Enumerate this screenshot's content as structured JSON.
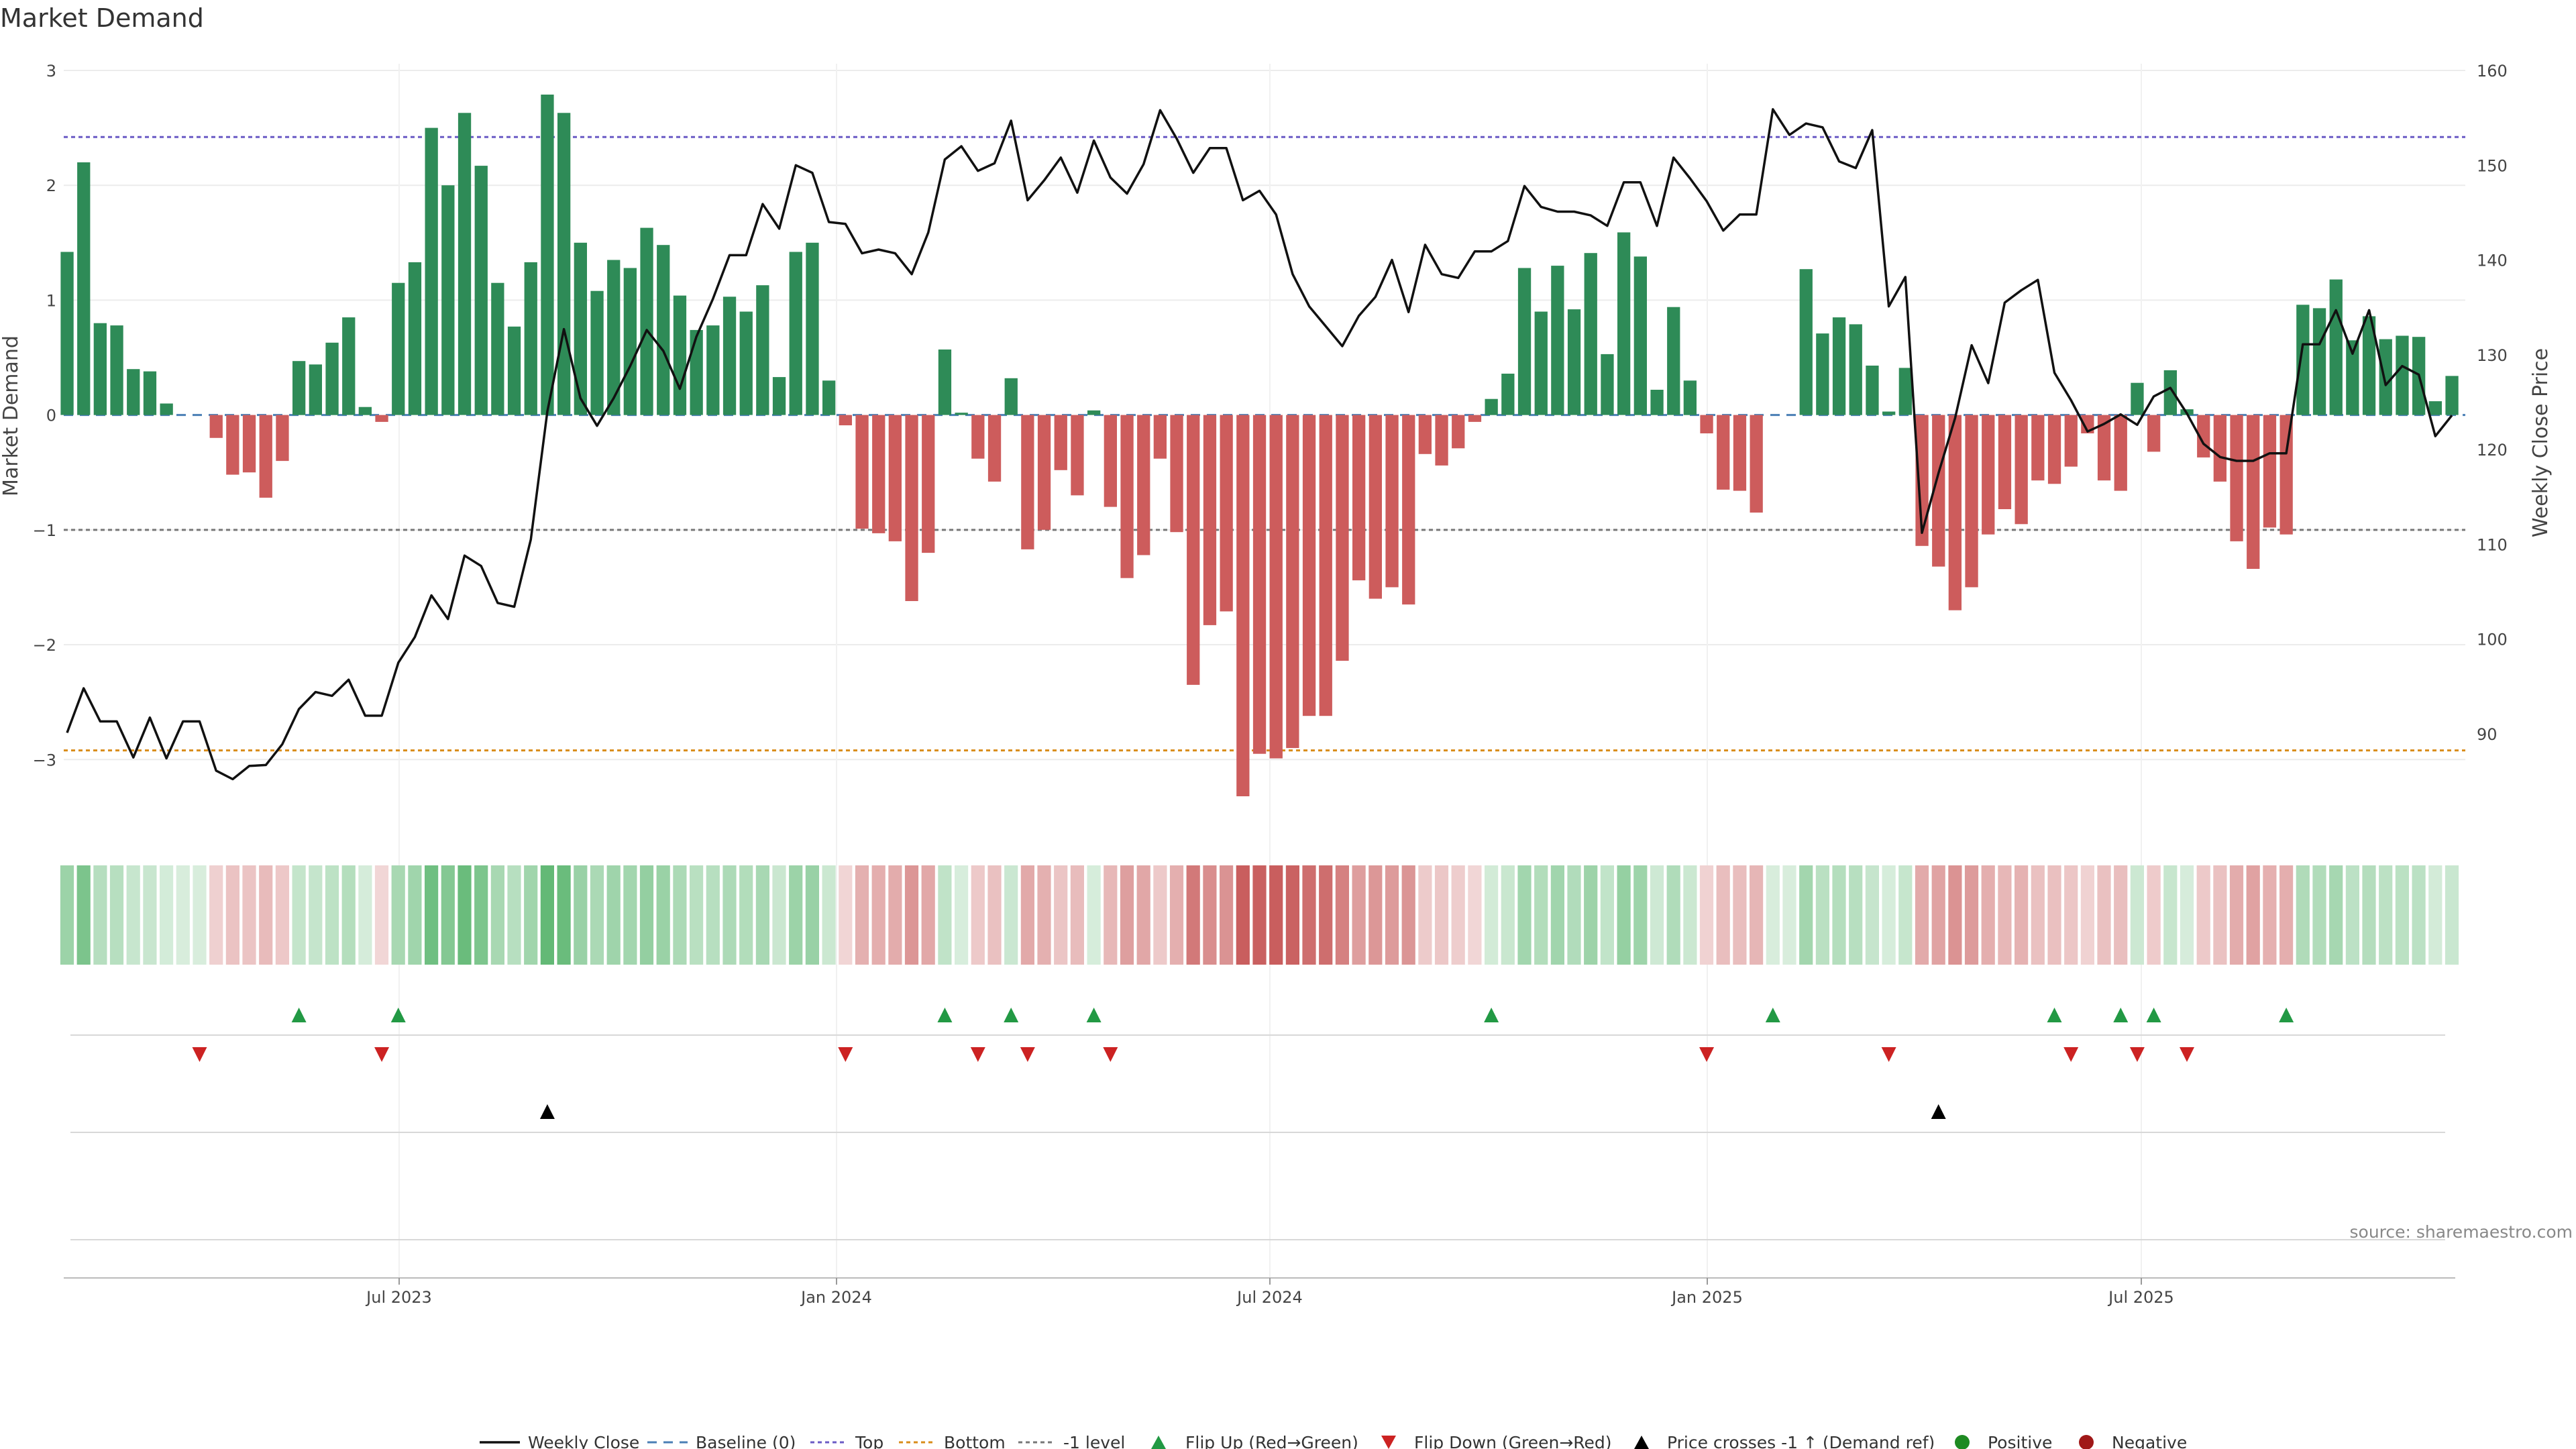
{
  "chart_data": {
    "type": "bar",
    "title": "Market Demand",
    "ylabel_left": "Market Demand",
    "ylabel_right": "Weekly Close Price",
    "ylim_left": [
      -3.6,
      3.0
    ],
    "ylim_right": [
      80,
      160
    ],
    "yticks_left": [
      "3",
      "2",
      "1",
      "0",
      "−1",
      "−2",
      "−3"
    ],
    "yticks_right": [
      "160",
      "150",
      "140",
      "130",
      "120",
      "110",
      "100",
      "90"
    ],
    "x_ticks": [
      "Jul 2023",
      "Jan 2024",
      "Jul 2024",
      "Jan 2025",
      "Jul 2025"
    ],
    "reference_lines": {
      "top": 2.42,
      "bottom": -2.92,
      "minus_one": -1.0,
      "baseline": 0
    },
    "demand": [
      1.42,
      2.2,
      0.8,
      0.78,
      0.4,
      0.38,
      0.1,
      0,
      0,
      -0.2,
      -0.52,
      -0.5,
      -0.72,
      -0.4,
      0.47,
      0.44,
      0.63,
      0.85,
      0.07,
      -0.06,
      1.15,
      1.33,
      2.5,
      2.0,
      2.63,
      2.17,
      1.15,
      0.77,
      1.33,
      2.79,
      2.63,
      1.5,
      1.08,
      1.35,
      1.28,
      1.63,
      1.48,
      1.04,
      0.74,
      0.78,
      1.03,
      0.9,
      1.13,
      0.33,
      1.42,
      1.5,
      0.3,
      -0.09,
      -0.99,
      -1.03,
      -1.1,
      -1.62,
      -1.2,
      0.57,
      0.02,
      -0.38,
      -0.58,
      0.32,
      -1.17,
      -1.0,
      -0.48,
      -0.7,
      0.04,
      -0.8,
      -1.42,
      -1.22,
      -0.38,
      -1.02,
      -2.35,
      -1.83,
      -1.71,
      -3.32,
      -2.95,
      -2.99,
      -2.9,
      -2.62,
      -2.62,
      -2.14,
      -1.44,
      -1.6,
      -1.5,
      -1.65,
      -0.34,
      -0.44,
      -0.29,
      -0.06,
      0.14,
      0.36,
      1.28,
      0.9,
      1.3,
      0.92,
      1.41,
      0.53,
      1.59,
      1.38,
      0.22,
      0.94,
      0.3,
      -0.16,
      -0.65,
      -0.66,
      -0.85,
      0,
      0,
      1.27,
      0.71,
      0.85,
      0.79,
      0.43,
      0.03,
      0.41,
      -1.14,
      -1.32,
      -1.7,
      -1.5,
      -1.04,
      -0.82,
      -0.95,
      -0.57,
      -0.6,
      -0.45,
      -0.16,
      -0.57,
      -0.66,
      0.28,
      -0.32,
      0.39,
      0.05,
      -0.37,
      -0.58,
      -1.1,
      -1.34,
      -0.98,
      -1.04,
      0.96,
      0.93,
      1.18,
      0.65,
      0.86,
      0.66,
      0.69,
      0.68,
      0.12,
      0.34
    ],
    "weekly_close": [
      90.1,
      94.8,
      91.3,
      91.3,
      87.5,
      91.7,
      87.4,
      91.3,
      91.3,
      86.1,
      85.2,
      86.6,
      86.7,
      88.9,
      92.6,
      94.4,
      94.0,
      95.7,
      91.9,
      91.9,
      97.5,
      100.2,
      104.6,
      102.1,
      108.8,
      107.7,
      103.8,
      103.4,
      110.5,
      124.0,
      132.7,
      125.4,
      122.5,
      125.4,
      128.8,
      132.6,
      130.4,
      126.4,
      131.9,
      135.9,
      140.5,
      140.5,
      145.9,
      143.3,
      150.0,
      149.2,
      144.0,
      143.8,
      140.7,
      141.1,
      140.7,
      138.5,
      142.9,
      150.6,
      152.0,
      149.4,
      150.2,
      154.7,
      146.3,
      148.4,
      150.8,
      147.1,
      152.6,
      148.7,
      147.0,
      150.1,
      155.8,
      152.8,
      149.2,
      151.8,
      151.8,
      146.3,
      147.3,
      144.8,
      138.5,
      135.1,
      133.0,
      130.9,
      134.1,
      136.1,
      140.0,
      134.5,
      141.6,
      138.5,
      138.1,
      140.9,
      140.9,
      142.0,
      147.8,
      145.6,
      145.1,
      145.1,
      144.7,
      143.6,
      148.2,
      148.2,
      143.6,
      150.8,
      148.6,
      146.2,
      143.1,
      144.8,
      144.8,
      155.9,
      153.2,
      154.4,
      154.0,
      150.4,
      149.7,
      153.7,
      135.1,
      138.2,
      111.2,
      117.5,
      123.3,
      131.0,
      127.0,
      135.5,
      136.8,
      137.9,
      128.1,
      125.2,
      121.9,
      122.7,
      123.7,
      122.6,
      125.6,
      126.5,
      123.8,
      120.6,
      119.2,
      118.8,
      118.8,
      119.6,
      119.6,
      131.1,
      131.1,
      134.7,
      130.1,
      134.7,
      126.8,
      128.8,
      127.9,
      121.4,
      123.6
    ],
    "flip_up_weeks": [
      14,
      20,
      53,
      57,
      62,
      86,
      103,
      120,
      124,
      126,
      134
    ],
    "flip_down_weeks": [
      8,
      19,
      47,
      55,
      58,
      63,
      99,
      110,
      121,
      125,
      128
    ],
    "price_cross_weeks": [
      29,
      113
    ],
    "legend": [
      "Weekly Close",
      "Baseline (0)",
      "Top",
      "Bottom",
      "-1 level",
      "Flip Up (Red→Green)",
      "Flip Down (Green→Red)",
      "Price crosses -1 ↑ (Demand ref)",
      "Positive",
      "Negative"
    ]
  },
  "source_text": "source: sharemaestro.com",
  "colors": {
    "positive": "#2e8b57",
    "negative": "#cd5c5c",
    "price": "#111111",
    "baseline": "#4a7fb5",
    "top": "#6b5bc5",
    "bottom": "#d98c1a",
    "minus_one": "#777777",
    "flip_up": "#229944",
    "flip_down": "#cc2222",
    "cross": "#000000",
    "legend_positive": "#1e8a22",
    "legend_negative": "#a01818"
  }
}
